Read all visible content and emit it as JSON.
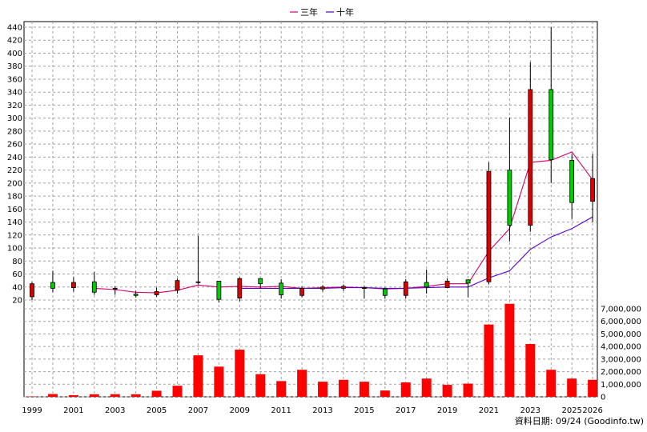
{
  "legend": {
    "items": [
      {
        "label": "三年",
        "color": "#d6006b"
      },
      {
        "label": "十年",
        "color": "#5a00cc"
      }
    ]
  },
  "footer": {
    "data_date": "資料日期: 09/24 (Goodinfo.tw)"
  },
  "chart_data": {
    "type": "candlestick",
    "x": [
      1999,
      2000,
      2001,
      2002,
      2003,
      2004,
      2005,
      2006,
      2007,
      2008,
      2009,
      2010,
      2011,
      2012,
      2013,
      2014,
      2015,
      2016,
      2017,
      2018,
      2019,
      2020,
      2021,
      2022,
      2023,
      2024,
      2025,
      2026
    ],
    "x_tick_labels": [
      "1999",
      "2001",
      "2003",
      "2005",
      "2007",
      "2009",
      "2011",
      "2013",
      "2015",
      "2017",
      "2019",
      "2021",
      "2023",
      "2025",
      "2026"
    ],
    "price_axis": {
      "ylim": [
        15,
        445
      ],
      "ticks": [
        20,
        40,
        60,
        80,
        100,
        120,
        140,
        160,
        180,
        200,
        220,
        240,
        260,
        280,
        300,
        320,
        340,
        360,
        380,
        400,
        420,
        440
      ]
    },
    "volume_axis": {
      "ylim": [
        0,
        7600000
      ],
      "ticks": [
        0,
        1000000,
        2000000,
        3000000,
        4000000,
        5000000,
        6000000,
        7000000
      ],
      "tick_labels": [
        "0",
        "1,000,000",
        "2,000,000",
        "3,000,000",
        "4,000,000",
        "5,000,000",
        "6,000,000",
        "7,000,000"
      ]
    },
    "candles": [
      {
        "open": 25,
        "high": 48,
        "low": 20,
        "close": 45,
        "color": "red"
      },
      {
        "open": 38,
        "high": 65,
        "low": 32,
        "close": 47,
        "color": "green"
      },
      {
        "open": 47,
        "high": 55,
        "low": 33,
        "close": 39,
        "color": "red"
      },
      {
        "open": 32,
        "high": 63,
        "low": 28,
        "close": 48,
        "color": "green"
      },
      {
        "open": 38,
        "high": 41,
        "low": 28,
        "close": 37,
        "color": "red"
      },
      {
        "open": 29,
        "high": 34,
        "low": 24,
        "close": 27,
        "color": "green"
      },
      {
        "open": 28,
        "high": 39,
        "low": 25,
        "close": 33,
        "color": "red"
      },
      {
        "open": 35,
        "high": 53,
        "low": 30,
        "close": 50,
        "color": "red"
      },
      {
        "open": 48,
        "high": 119,
        "low": 44,
        "close": 48,
        "color": "red"
      },
      {
        "open": 21,
        "high": 49,
        "low": 16,
        "close": 49,
        "color": "green"
      },
      {
        "open": 23,
        "high": 55,
        "low": 18,
        "close": 53,
        "color": "red"
      },
      {
        "open": 45,
        "high": 53,
        "low": 37,
        "close": 53,
        "color": "green"
      },
      {
        "open": 28,
        "high": 52,
        "low": 22,
        "close": 46,
        "color": "green"
      },
      {
        "open": 27,
        "high": 41,
        "low": 24,
        "close": 38,
        "color": "red"
      },
      {
        "open": 37,
        "high": 43,
        "low": 33,
        "close": 40,
        "color": "red"
      },
      {
        "open": 38,
        "high": 44,
        "low": 34,
        "close": 41,
        "color": "red"
      },
      {
        "open": 39,
        "high": 42,
        "low": 22,
        "close": 38,
        "color": "red"
      },
      {
        "open": 27,
        "high": 39,
        "low": 22,
        "close": 37,
        "color": "green"
      },
      {
        "open": 27,
        "high": 52,
        "low": 22,
        "close": 48,
        "color": "red"
      },
      {
        "open": 40,
        "high": 67,
        "low": 30,
        "close": 47,
        "color": "green"
      },
      {
        "open": 39,
        "high": 53,
        "low": 38,
        "close": 49,
        "color": "red"
      },
      {
        "open": 46,
        "high": 52,
        "low": 24,
        "close": 51,
        "color": "green"
      },
      {
        "open": 48,
        "high": 232,
        "low": 44,
        "close": 218,
        "color": "red"
      },
      {
        "open": 135,
        "high": 301,
        "low": 110,
        "close": 220,
        "color": "green"
      },
      {
        "open": 135,
        "high": 386,
        "low": 125,
        "close": 344,
        "color": "red"
      },
      {
        "open": 236,
        "high": 440,
        "low": 200,
        "close": 344,
        "color": "green"
      },
      {
        "open": 170,
        "high": 245,
        "low": 145,
        "close": 235,
        "color": "green"
      },
      {
        "open": 172,
        "high": 245,
        "low": 140,
        "close": 207,
        "color": "red"
      }
    ],
    "series": [
      {
        "name": "三年",
        "values": [
          null,
          null,
          null,
          38,
          36,
          32,
          31,
          35,
          43,
          40,
          41,
          40,
          41,
          38,
          39,
          40,
          39,
          37,
          38,
          41,
          45,
          45,
          95,
          130,
          232,
          235,
          248,
          205
        ]
      },
      {
        "name": "十年",
        "values": [
          null,
          null,
          null,
          null,
          null,
          null,
          null,
          null,
          null,
          null,
          38,
          38,
          38,
          38,
          38,
          39,
          39,
          38,
          38,
          39,
          40,
          40,
          54,
          65,
          98,
          117,
          130,
          148
        ]
      }
    ],
    "volume": [
      30000,
      220000,
      130000,
      200000,
      210000,
      200000,
      480000,
      880000,
      3300000,
      2400000,
      3750000,
      1800000,
      1250000,
      2150000,
      1200000,
      1350000,
      1200000,
      500000,
      1150000,
      1450000,
      950000,
      1050000,
      5750000,
      7400000,
      4200000,
      2150000,
      1450000,
      1350000
    ]
  }
}
